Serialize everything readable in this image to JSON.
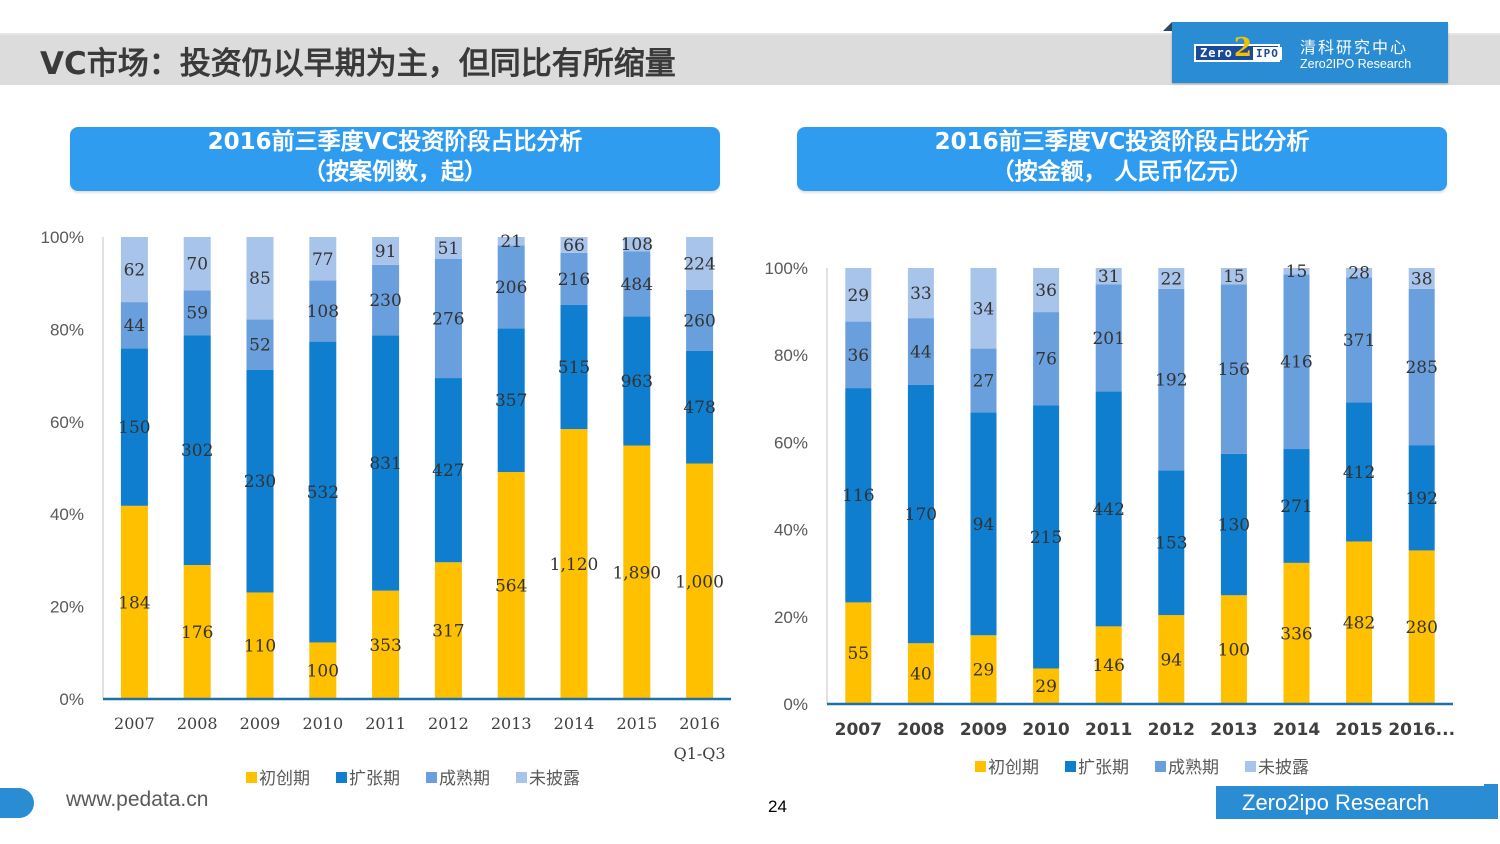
{
  "header": {
    "title": "VC市场：投资仍以早期为主，但同比有所缩量",
    "logo_mark": {
      "zero": "Zero",
      "two": "2",
      "ipo": "IPO"
    },
    "logo_cn": "清科研究中心",
    "logo_en": "Zero2IPO Research"
  },
  "footer": {
    "url": "www.pedata.cn",
    "page_number": "24",
    "brand": "Zero2ipo Research"
  },
  "colors": {
    "seed": "#FFC000",
    "expansion": "#0F7ECF",
    "mature": "#6A9FDD",
    "undisclosed": "#A9C4EB",
    "header_bg": "#2F9CF0",
    "brand_blue": "#2A8DD4",
    "axis_line": "#1F6FA8"
  },
  "chart_data": [
    {
      "type": "bar",
      "stacked": "percent",
      "title_line1": "2016前三季度VC投资阶段占比分析",
      "title_line2": "（按案例数，起）",
      "categories": [
        "2007",
        "2008",
        "2009",
        "2010",
        "2011",
        "2012",
        "2013",
        "2014",
        "2015",
        "2016 Q1-Q3"
      ],
      "category_labels": [
        [
          "2007"
        ],
        [
          "2008"
        ],
        [
          "2009"
        ],
        [
          "2010"
        ],
        [
          "2011"
        ],
        [
          "2012"
        ],
        [
          "2013"
        ],
        [
          "2014"
        ],
        [
          "2015"
        ],
        [
          "2016",
          "Q1-Q3"
        ]
      ],
      "series": [
        {
          "name": "初创期",
          "color_key": "seed",
          "values": [
            184,
            176,
            110,
            100,
            353,
            317,
            564,
            1120,
            1890,
            1000
          ],
          "labels": [
            "184",
            "176",
            "110",
            "100",
            "353",
            "317",
            "564",
            "1,120",
            "1,890",
            "1,000"
          ]
        },
        {
          "name": "扩张期",
          "color_key": "expansion",
          "values": [
            150,
            302,
            230,
            532,
            831,
            427,
            357,
            515,
            963,
            478
          ],
          "labels": [
            "150",
            "302",
            "230",
            "532",
            "831",
            "427",
            "357",
            "515",
            "963",
            "478"
          ]
        },
        {
          "name": "成熟期",
          "color_key": "mature",
          "values": [
            44,
            59,
            52,
            108,
            230,
            276,
            206,
            216,
            484,
            260
          ],
          "labels": [
            "44",
            "59",
            "52",
            "108",
            "230",
            "276",
            "206",
            "216",
            "484",
            "260"
          ]
        },
        {
          "name": "未披露",
          "color_key": "undisclosed",
          "values": [
            62,
            70,
            85,
            77,
            91,
            51,
            21,
            66,
            108,
            224
          ],
          "labels": [
            "62",
            "70",
            "85",
            "77",
            "91",
            "51",
            "21",
            "66",
            "108",
            "224"
          ]
        }
      ],
      "yticks": [
        "0%",
        "20%",
        "40%",
        "60%",
        "80%",
        "100%"
      ],
      "ylim": [
        0,
        100
      ],
      "xlabel": "",
      "ylabel": "",
      "grid": false,
      "legend": "bottom"
    },
    {
      "type": "bar",
      "stacked": "percent",
      "title_line1": "2016前三季度VC投资阶段占比分析",
      "title_line2": "（按金额， 人民币亿元）",
      "categories": [
        "2007",
        "2008",
        "2009",
        "2010",
        "2011",
        "2012",
        "2013",
        "2014",
        "2015",
        "2016..."
      ],
      "category_labels": [
        [
          "2007"
        ],
        [
          "2008"
        ],
        [
          "2009"
        ],
        [
          "2010"
        ],
        [
          "2011"
        ],
        [
          "2012"
        ],
        [
          "2013"
        ],
        [
          "2014"
        ],
        [
          "2015"
        ],
        [
          "2016..."
        ]
      ],
      "series": [
        {
          "name": "初创期",
          "color_key": "seed",
          "values": [
            55,
            40,
            29,
            29,
            146,
            94,
            100,
            336,
            482,
            280
          ],
          "labels": [
            "55",
            "40",
            "29",
            "29",
            "146",
            "94",
            "100",
            "336",
            "482",
            "280"
          ]
        },
        {
          "name": "扩张期",
          "color_key": "expansion",
          "values": [
            116,
            170,
            94,
            215,
            442,
            153,
            130,
            271,
            412,
            192
          ],
          "labels": [
            "116",
            "170",
            "94",
            "215",
            "442",
            "153",
            "130",
            "271",
            "412",
            "192"
          ]
        },
        {
          "name": "成熟期",
          "color_key": "mature",
          "values": [
            36,
            44,
            27,
            76,
            201,
            192,
            156,
            416,
            371,
            285
          ],
          "labels": [
            "36",
            "44",
            "27",
            "76",
            "201",
            "192",
            "156",
            "416",
            "371",
            "285"
          ]
        },
        {
          "name": "未披露",
          "color_key": "undisclosed",
          "values": [
            29,
            33,
            34,
            36,
            31,
            22,
            15,
            15,
            28,
            38
          ],
          "labels": [
            "29",
            "33",
            "34",
            "36",
            "31",
            "22",
            "15",
            "15",
            "28",
            "38"
          ]
        }
      ],
      "yticks": [
        "0%",
        "20%",
        "40%",
        "60%",
        "80%",
        "100%"
      ],
      "ylim": [
        0,
        100
      ],
      "xlabel": "",
      "ylabel": "",
      "grid": false,
      "legend": "bottom"
    }
  ]
}
